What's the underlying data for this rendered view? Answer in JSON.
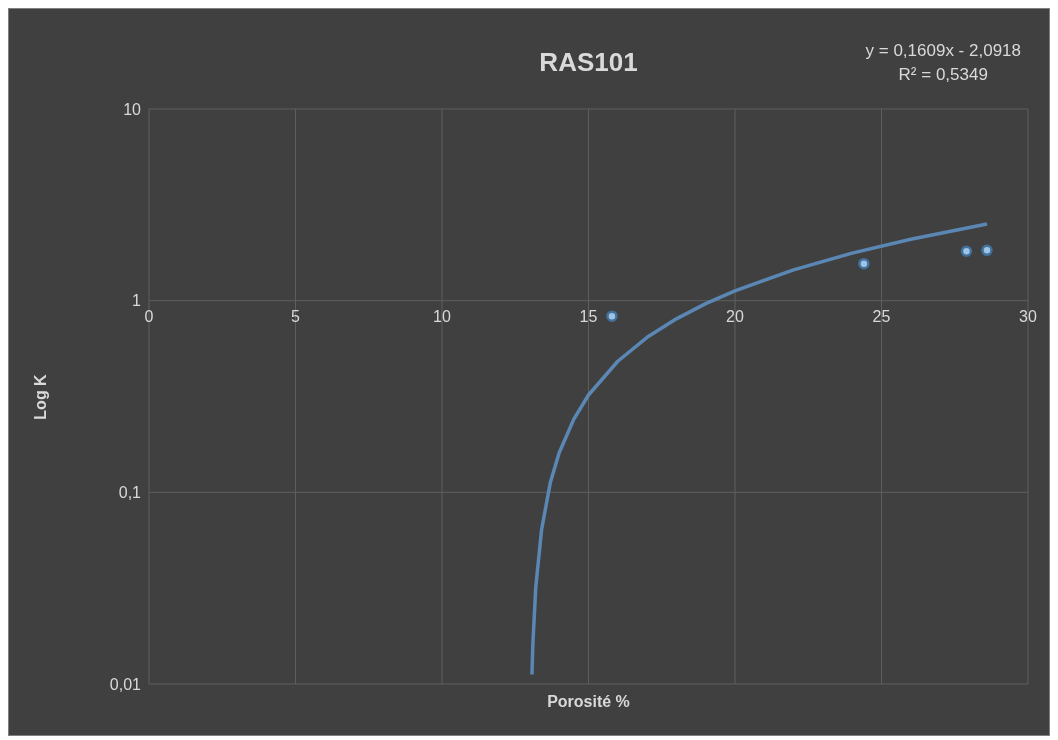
{
  "chart_data": {
    "type": "scatter",
    "title": "RAS101",
    "xlabel": "Porosité %",
    "ylabel": "Log K",
    "annotations": [
      "y = 0,1609x - 2,0918",
      "R² = 0,5349"
    ],
    "x": [
      15.8,
      24.4,
      27.9,
      28.6
    ],
    "series": [
      {
        "color": "#9dc3e6",
        "marker": "circle",
        "values": [
          0.83,
          1.56,
          1.81,
          1.83
        ]
      },
      {
        "type": "line",
        "color": "#5b87b4",
        "marker": "none",
        "x": [
          13.07,
          13.1,
          13.2,
          13.4,
          13.7,
          14,
          14.5,
          15,
          16,
          17,
          18,
          19,
          20,
          22,
          24,
          26,
          28.6
        ],
        "values": [
          0.0112,
          0.016,
          0.032,
          0.064,
          0.113,
          0.161,
          0.241,
          0.322,
          0.483,
          0.644,
          0.804,
          0.965,
          1.126,
          1.448,
          1.77,
          2.091,
          2.51
        ]
      }
    ],
    "xlim": [
      0,
      30
    ],
    "xticks": [
      0,
      5,
      10,
      15,
      20,
      25,
      30
    ],
    "ylim": [
      0.01,
      10
    ],
    "yticks": [
      {
        "value": 0.01,
        "label": "0,01"
      },
      {
        "value": 0.1,
        "label": "0,1"
      },
      1,
      10
    ],
    "log": "y",
    "grid": true
  }
}
